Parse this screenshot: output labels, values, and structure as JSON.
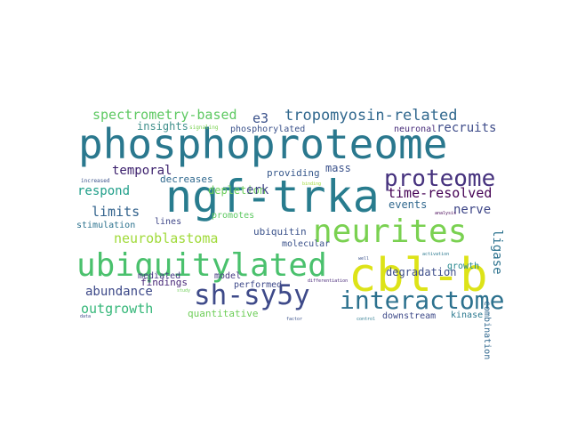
{
  "words": [
    {
      "text": "phosphoproteome",
      "color": "#2a788e"
    },
    {
      "text": "ngf-trka",
      "color": "#287c8e"
    },
    {
      "text": "cbl-b",
      "color": "#dde318"
    },
    {
      "text": "ubiquitylated",
      "color": "#4ac16d"
    },
    {
      "text": "neurites",
      "color": "#7ad151"
    },
    {
      "text": "sh-sy5y",
      "color": "#3e4a89"
    },
    {
      "text": "interactome",
      "color": "#2c718e"
    },
    {
      "text": "proteome",
      "color": "#46327e"
    },
    {
      "text": "tropomyosin-related",
      "color": "#31688e"
    },
    {
      "text": "spectrometry-based",
      "color": "#5ec962"
    },
    {
      "text": "e3",
      "color": "#3b528b"
    },
    {
      "text": "recruits",
      "color": "#3e4c8a"
    },
    {
      "text": "neuroblastoma",
      "color": "#a0da39"
    },
    {
      "text": "temporal",
      "color": "#3b1f6c"
    },
    {
      "text": "insights",
      "color": "#3f8f8b"
    },
    {
      "text": "time-resolved",
      "color": "#440154"
    },
    {
      "text": "limits",
      "color": "#33638d"
    },
    {
      "text": "respond",
      "color": "#1f9e89"
    },
    {
      "text": "depletion",
      "color": "#6ccd5a"
    },
    {
      "text": "erk",
      "color": "#414487"
    },
    {
      "text": "mass",
      "color": "#3b528b"
    },
    {
      "text": "providing",
      "color": "#38598c"
    },
    {
      "text": "events",
      "color": "#31688e"
    },
    {
      "text": "nerve",
      "color": "#3f4788"
    },
    {
      "text": "ligase",
      "color": "#2c728e"
    },
    {
      "text": "abundance",
      "color": "#3e4a89"
    },
    {
      "text": "outgrowth",
      "color": "#35b779"
    },
    {
      "text": "ubiquitin",
      "color": "#3b528b"
    },
    {
      "text": "degradation",
      "color": "#3d4d8a"
    },
    {
      "text": "neuronal",
      "color": "#472c7a"
    },
    {
      "text": "phosphorylated",
      "color": "#3b528b"
    },
    {
      "text": "decreases",
      "color": "#30698e"
    },
    {
      "text": "promotes",
      "color": "#5ec962"
    },
    {
      "text": "stimulation",
      "color": "#2c728e"
    },
    {
      "text": "lines",
      "color": "#3f4788"
    },
    {
      "text": "mediated",
      "color": "#453882"
    },
    {
      "text": "molecular",
      "color": "#3b528b"
    },
    {
      "text": "findings",
      "color": "#482878"
    },
    {
      "text": "performed",
      "color": "#3e4989"
    },
    {
      "text": "model",
      "color": "#453781"
    },
    {
      "text": "quantitative",
      "color": "#6ece58"
    },
    {
      "text": "growth",
      "color": "#24868e"
    },
    {
      "text": "combination",
      "color": "#31688e"
    },
    {
      "text": "downstream",
      "color": "#3e4a89"
    },
    {
      "text": "kinase",
      "color": "#2a788e"
    },
    {
      "text": "signaling",
      "color": "#7ad151"
    },
    {
      "text": "binding",
      "color": "#9fda3a"
    },
    {
      "text": "increased",
      "color": "#3b528b"
    },
    {
      "text": "analysis",
      "color": "#440154"
    },
    {
      "text": "activation",
      "color": "#2a788e"
    },
    {
      "text": "well",
      "color": "#3b528b"
    },
    {
      "text": "differentiation",
      "color": "#482878"
    },
    {
      "text": "study",
      "color": "#6ece58"
    },
    {
      "text": "data",
      "color": "#3e4989"
    },
    {
      "text": "factor",
      "color": "#3b528b"
    },
    {
      "text": "control",
      "color": "#2a788e"
    }
  ]
}
